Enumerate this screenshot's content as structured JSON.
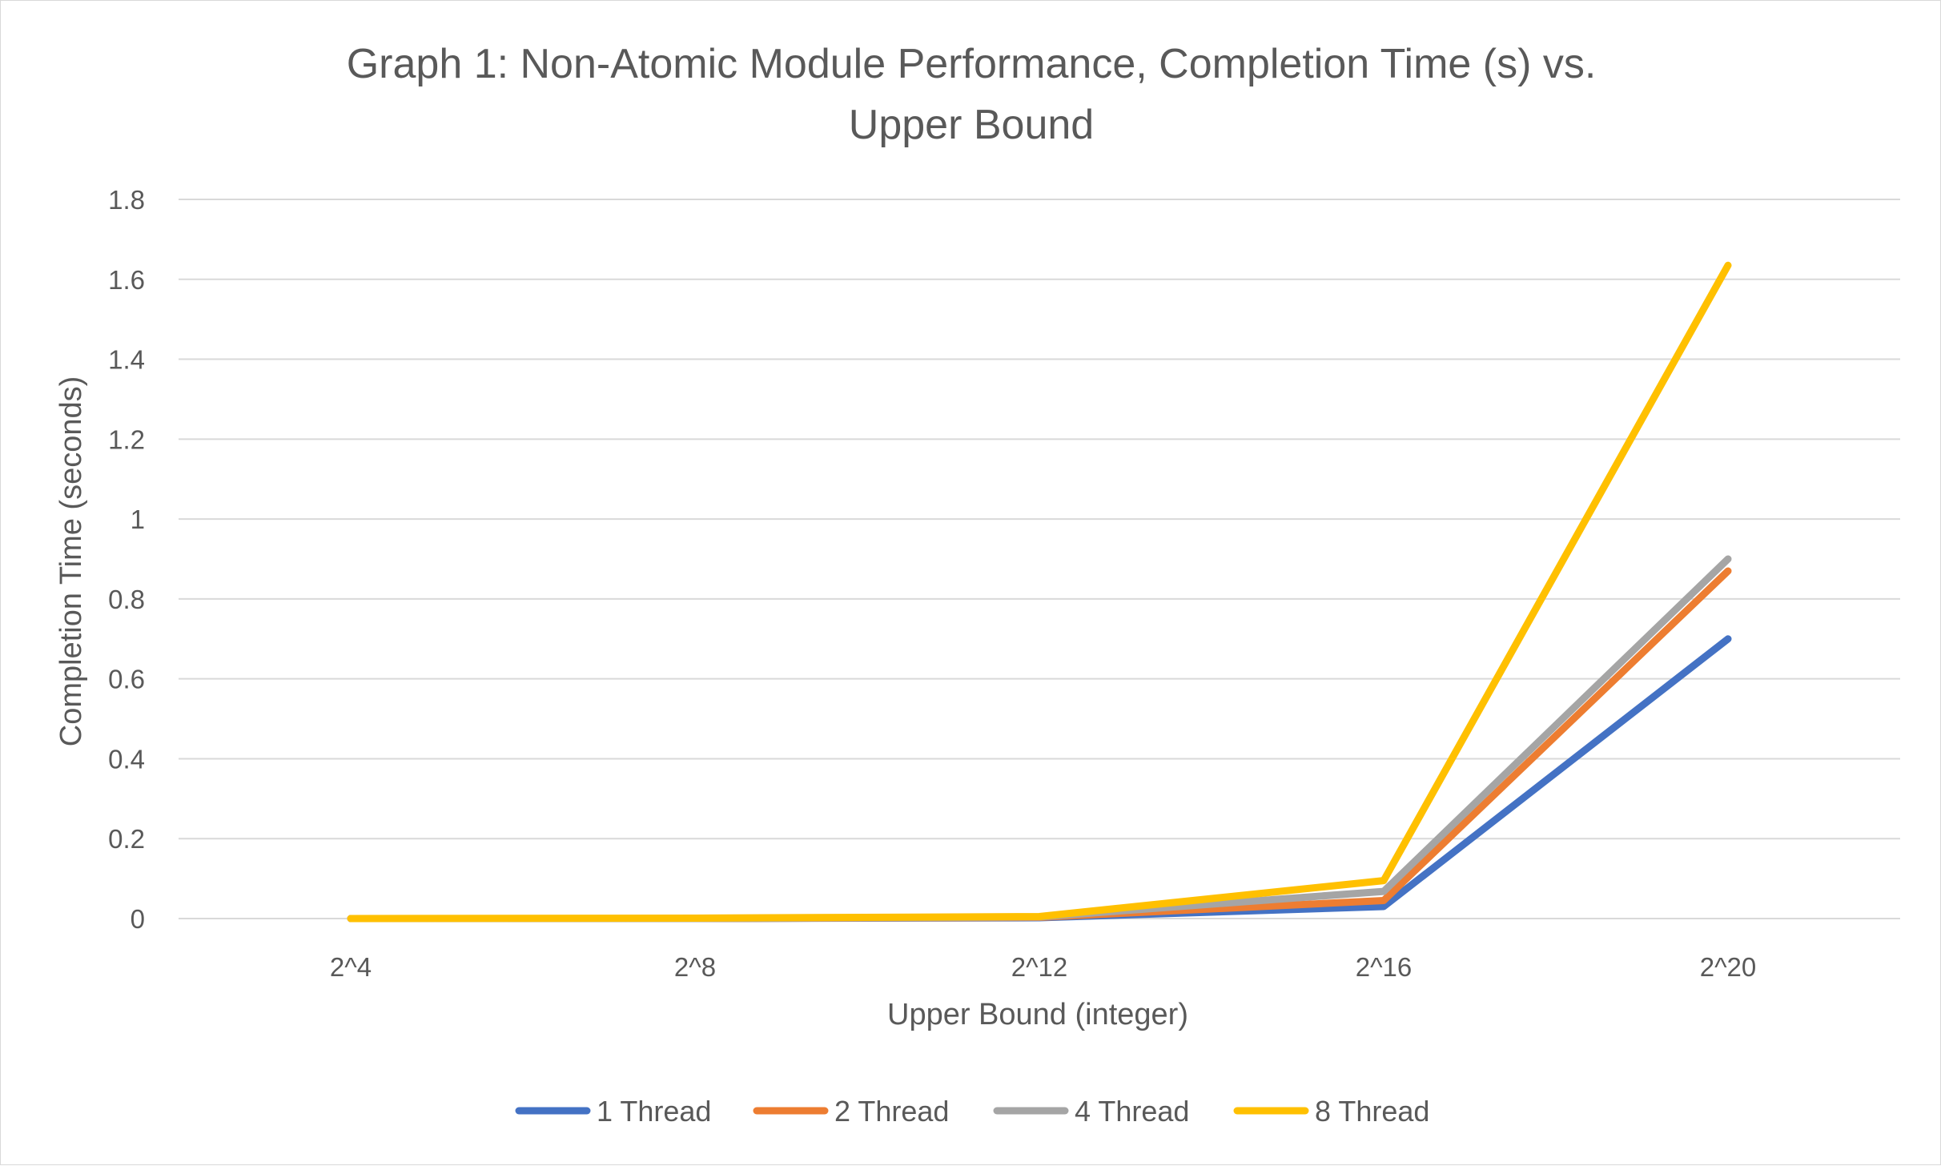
{
  "chart_data": {
    "type": "line",
    "title": "Graph 1: Non-Atomic Module Performance, Completion Time (s) vs. Upper Bound",
    "title_lines": [
      "Graph 1: Non-Atomic Module Performance, Completion Time (s) vs.",
      "Upper Bound"
    ],
    "xlabel": "Upper Bound (integer)",
    "ylabel": "Completion Time (seconds)",
    "categories": [
      "2^4",
      "2^8",
      "2^12",
      "2^16",
      "2^20"
    ],
    "ylim": [
      0,
      1.8
    ],
    "yticks": [
      0,
      0.2,
      0.4,
      0.6,
      0.8,
      1,
      1.2,
      1.4,
      1.6,
      1.8
    ],
    "ytick_labels": [
      "0",
      "0.2",
      "0.4",
      "0.6",
      "0.8",
      "1",
      "1.2",
      "1.4",
      "1.6",
      "1.8"
    ],
    "grid": true,
    "legend_position": "bottom",
    "series": [
      {
        "name": "1 Thread",
        "color": "#4472C4",
        "values": [
          0.0,
          0.0,
          0.002,
          0.03,
          0.7
        ]
      },
      {
        "name": "2 Thread",
        "color": "#ED7D31",
        "values": [
          0.0,
          0.0,
          0.003,
          0.045,
          0.87
        ]
      },
      {
        "name": "4 Thread",
        "color": "#A5A5A5",
        "values": [
          0.0,
          0.0,
          0.004,
          0.068,
          0.9
        ]
      },
      {
        "name": "8 Thread",
        "color": "#FFC000",
        "values": [
          0.0,
          0.001,
          0.005,
          0.095,
          1.635
        ]
      }
    ]
  }
}
